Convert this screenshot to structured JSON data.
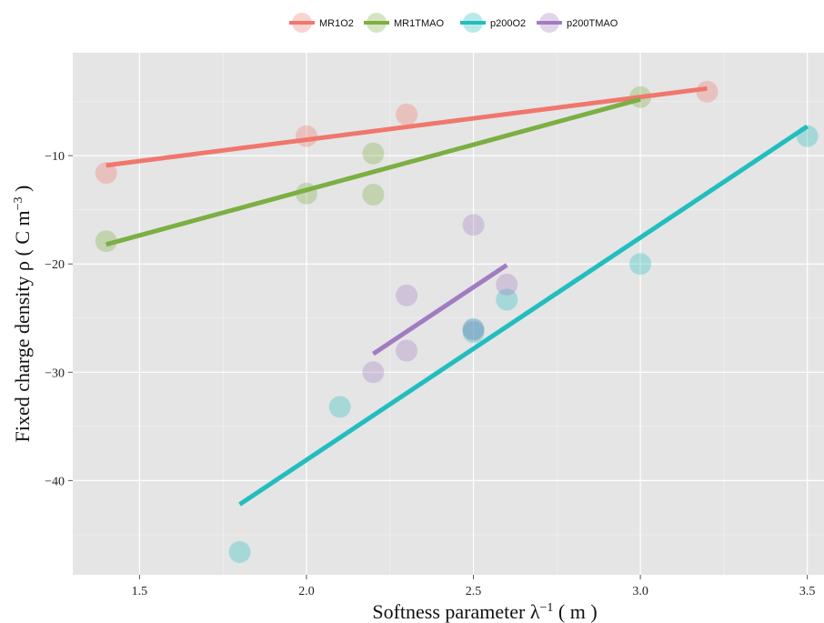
{
  "chart_data": {
    "type": "scatter",
    "xlabel": "Softness parameter λ",
    "xlabel_sup": "−1",
    "xlabel_unit": " ( m )",
    "ylabel": "Fixed charge density ρ ( C m",
    "ylabel_sup": "−3",
    "ylabel_unit": " )",
    "xlim": [
      1.3,
      3.55
    ],
    "ylim": [
      -48.7,
      -0.5
    ],
    "x_ticks": [
      1.5,
      2.0,
      2.5,
      3.0,
      3.5
    ],
    "x_tick_labels": [
      "1.5",
      "2.0",
      "2.5",
      "3.0",
      "3.5"
    ],
    "y_ticks": [
      -10,
      -20,
      -30,
      -40
    ],
    "y_tick_labels": [
      "−10",
      "−20",
      "−30",
      "−40"
    ],
    "grid": true,
    "legend_position": "top",
    "series": [
      {
        "name": "MR1O2",
        "color": "#F0776D",
        "points": [
          [
            1.4,
            -11.6
          ],
          [
            2.0,
            -8.2
          ],
          [
            2.3,
            -6.2
          ],
          [
            3.2,
            -4.1
          ]
        ],
        "fit": [
          [
            1.4,
            -10.9
          ],
          [
            3.2,
            -3.8
          ]
        ]
      },
      {
        "name": "MR1TMAO",
        "color": "#7CAF42",
        "points": [
          [
            1.4,
            -17.9
          ],
          [
            2.0,
            -13.5
          ],
          [
            2.2,
            -9.8
          ],
          [
            2.2,
            -13.6
          ],
          [
            3.0,
            -4.6
          ]
        ],
        "fit": [
          [
            1.4,
            -18.2
          ],
          [
            3.0,
            -4.8
          ]
        ]
      },
      {
        "name": "p200O2",
        "color": "#22BDBF",
        "points": [
          [
            1.8,
            -46.6
          ],
          [
            2.1,
            -33.2
          ],
          [
            2.5,
            -26.0
          ],
          [
            2.5,
            -26.3
          ],
          [
            2.6,
            -23.3
          ],
          [
            3.0,
            -20.0
          ],
          [
            3.5,
            -8.2
          ]
        ],
        "fit": [
          [
            1.8,
            -42.2
          ],
          [
            3.5,
            -7.3
          ]
        ]
      },
      {
        "name": "p200TMAO",
        "color": "#A27CC1",
        "points": [
          [
            2.2,
            -30.0
          ],
          [
            2.3,
            -22.9
          ],
          [
            2.3,
            -28.0
          ],
          [
            2.5,
            -16.4
          ],
          [
            2.5,
            -26.1
          ],
          [
            2.6,
            -21.9
          ]
        ],
        "fit": [
          [
            2.2,
            -28.3
          ],
          [
            2.6,
            -20.1
          ]
        ]
      }
    ]
  }
}
